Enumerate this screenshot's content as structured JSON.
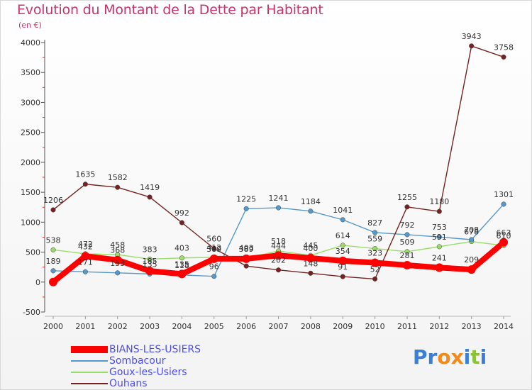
{
  "header": {
    "title": "Evolution du Montant de la Dette par Habitant",
    "unit": "(en €)"
  },
  "logo": {
    "letters": [
      "P",
      "r",
      "o",
      "x",
      "i",
      "t",
      "i"
    ],
    "colors": [
      "#3a7fd6",
      "#3a7fd6",
      "#f28a1c",
      "#f28a1c",
      "#3a7fd6",
      "#8cc23a",
      "#3a7fd6"
    ]
  },
  "chart_data": {
    "type": "line",
    "title": "Evolution du Montant de la Dette par Habitant",
    "ylabel": "(en €)",
    "xlabel": "",
    "x": [
      "2000",
      "2001",
      "2002",
      "2003",
      "2004",
      "2005",
      "2006",
      "2007",
      "2008",
      "2009",
      "2010",
      "2011",
      "2012",
      "2013",
      "2014"
    ],
    "ylim": [
      -500,
      4000
    ],
    "yticks": [
      "-500",
      "0",
      "500",
      "1000",
      "1500",
      "2000",
      "2500",
      "3000",
      "3500",
      "4000"
    ],
    "grid": false,
    "legend_position": "bottom-left",
    "series": [
      {
        "name": "Goux-les-Usiers",
        "color": "#99dd66",
        "values": [
          538,
          472,
          458,
          383,
          403,
          412,
          403,
          518,
          445,
          614,
          559,
          509,
          591,
          678,
          610
        ],
        "labels": [
          "538",
          "472",
          "458",
          "383",
          "403",
          "412",
          "403",
          "518",
          "445",
          "614",
          "559",
          "509",
          "591",
          "678",
          "610"
        ]
      },
      {
        "name": "Sombacour",
        "color": "#5599cc",
        "values": [
          189,
          171,
          153,
          135,
          118,
          96,
          1225,
          1241,
          1184,
          1041,
          827,
          792,
          753,
          708,
          1301
        ],
        "labels": [
          "189",
          "171",
          "153",
          "135",
          "118",
          "96",
          "1225",
          "1241",
          "1184",
          "1041",
          "827",
          "792",
          "753",
          "708",
          "1301"
        ]
      },
      {
        "name": "Ouhans",
        "color": "#772222",
        "values": [
          1206,
          1635,
          1582,
          1419,
          992,
          560,
          268,
          202,
          148,
          91,
          52,
          1255,
          1180,
          3943,
          3758
        ],
        "labels": [
          "1206",
          "1635",
          "1582",
          "1419",
          "992",
          "560",
          "",
          "202",
          "148",
          "91",
          "52",
          "1255",
          "1180",
          "3943",
          "3758"
        ]
      },
      {
        "name": "BIANS-LES-USIERS",
        "color": "#ff0000",
        "values": [
          0,
          432,
          368,
          185,
          135,
          389,
          389,
          444,
          400,
          354,
          323,
          281,
          241,
          209,
          663
        ],
        "labels": [
          "",
          "432",
          "368",
          "185",
          "135",
          "389",
          "389",
          "444",
          "400",
          "354",
          "323",
          "281",
          "241",
          "209",
          "663"
        ]
      }
    ],
    "legend": [
      {
        "name": "BIANS-LES-USIERS",
        "color": "#ff0000"
      },
      {
        "name": "Sombacour",
        "color": "#5599cc"
      },
      {
        "name": "Goux-les-Usiers",
        "color": "#99dd66"
      },
      {
        "name": "Ouhans",
        "color": "#772222"
      }
    ]
  }
}
